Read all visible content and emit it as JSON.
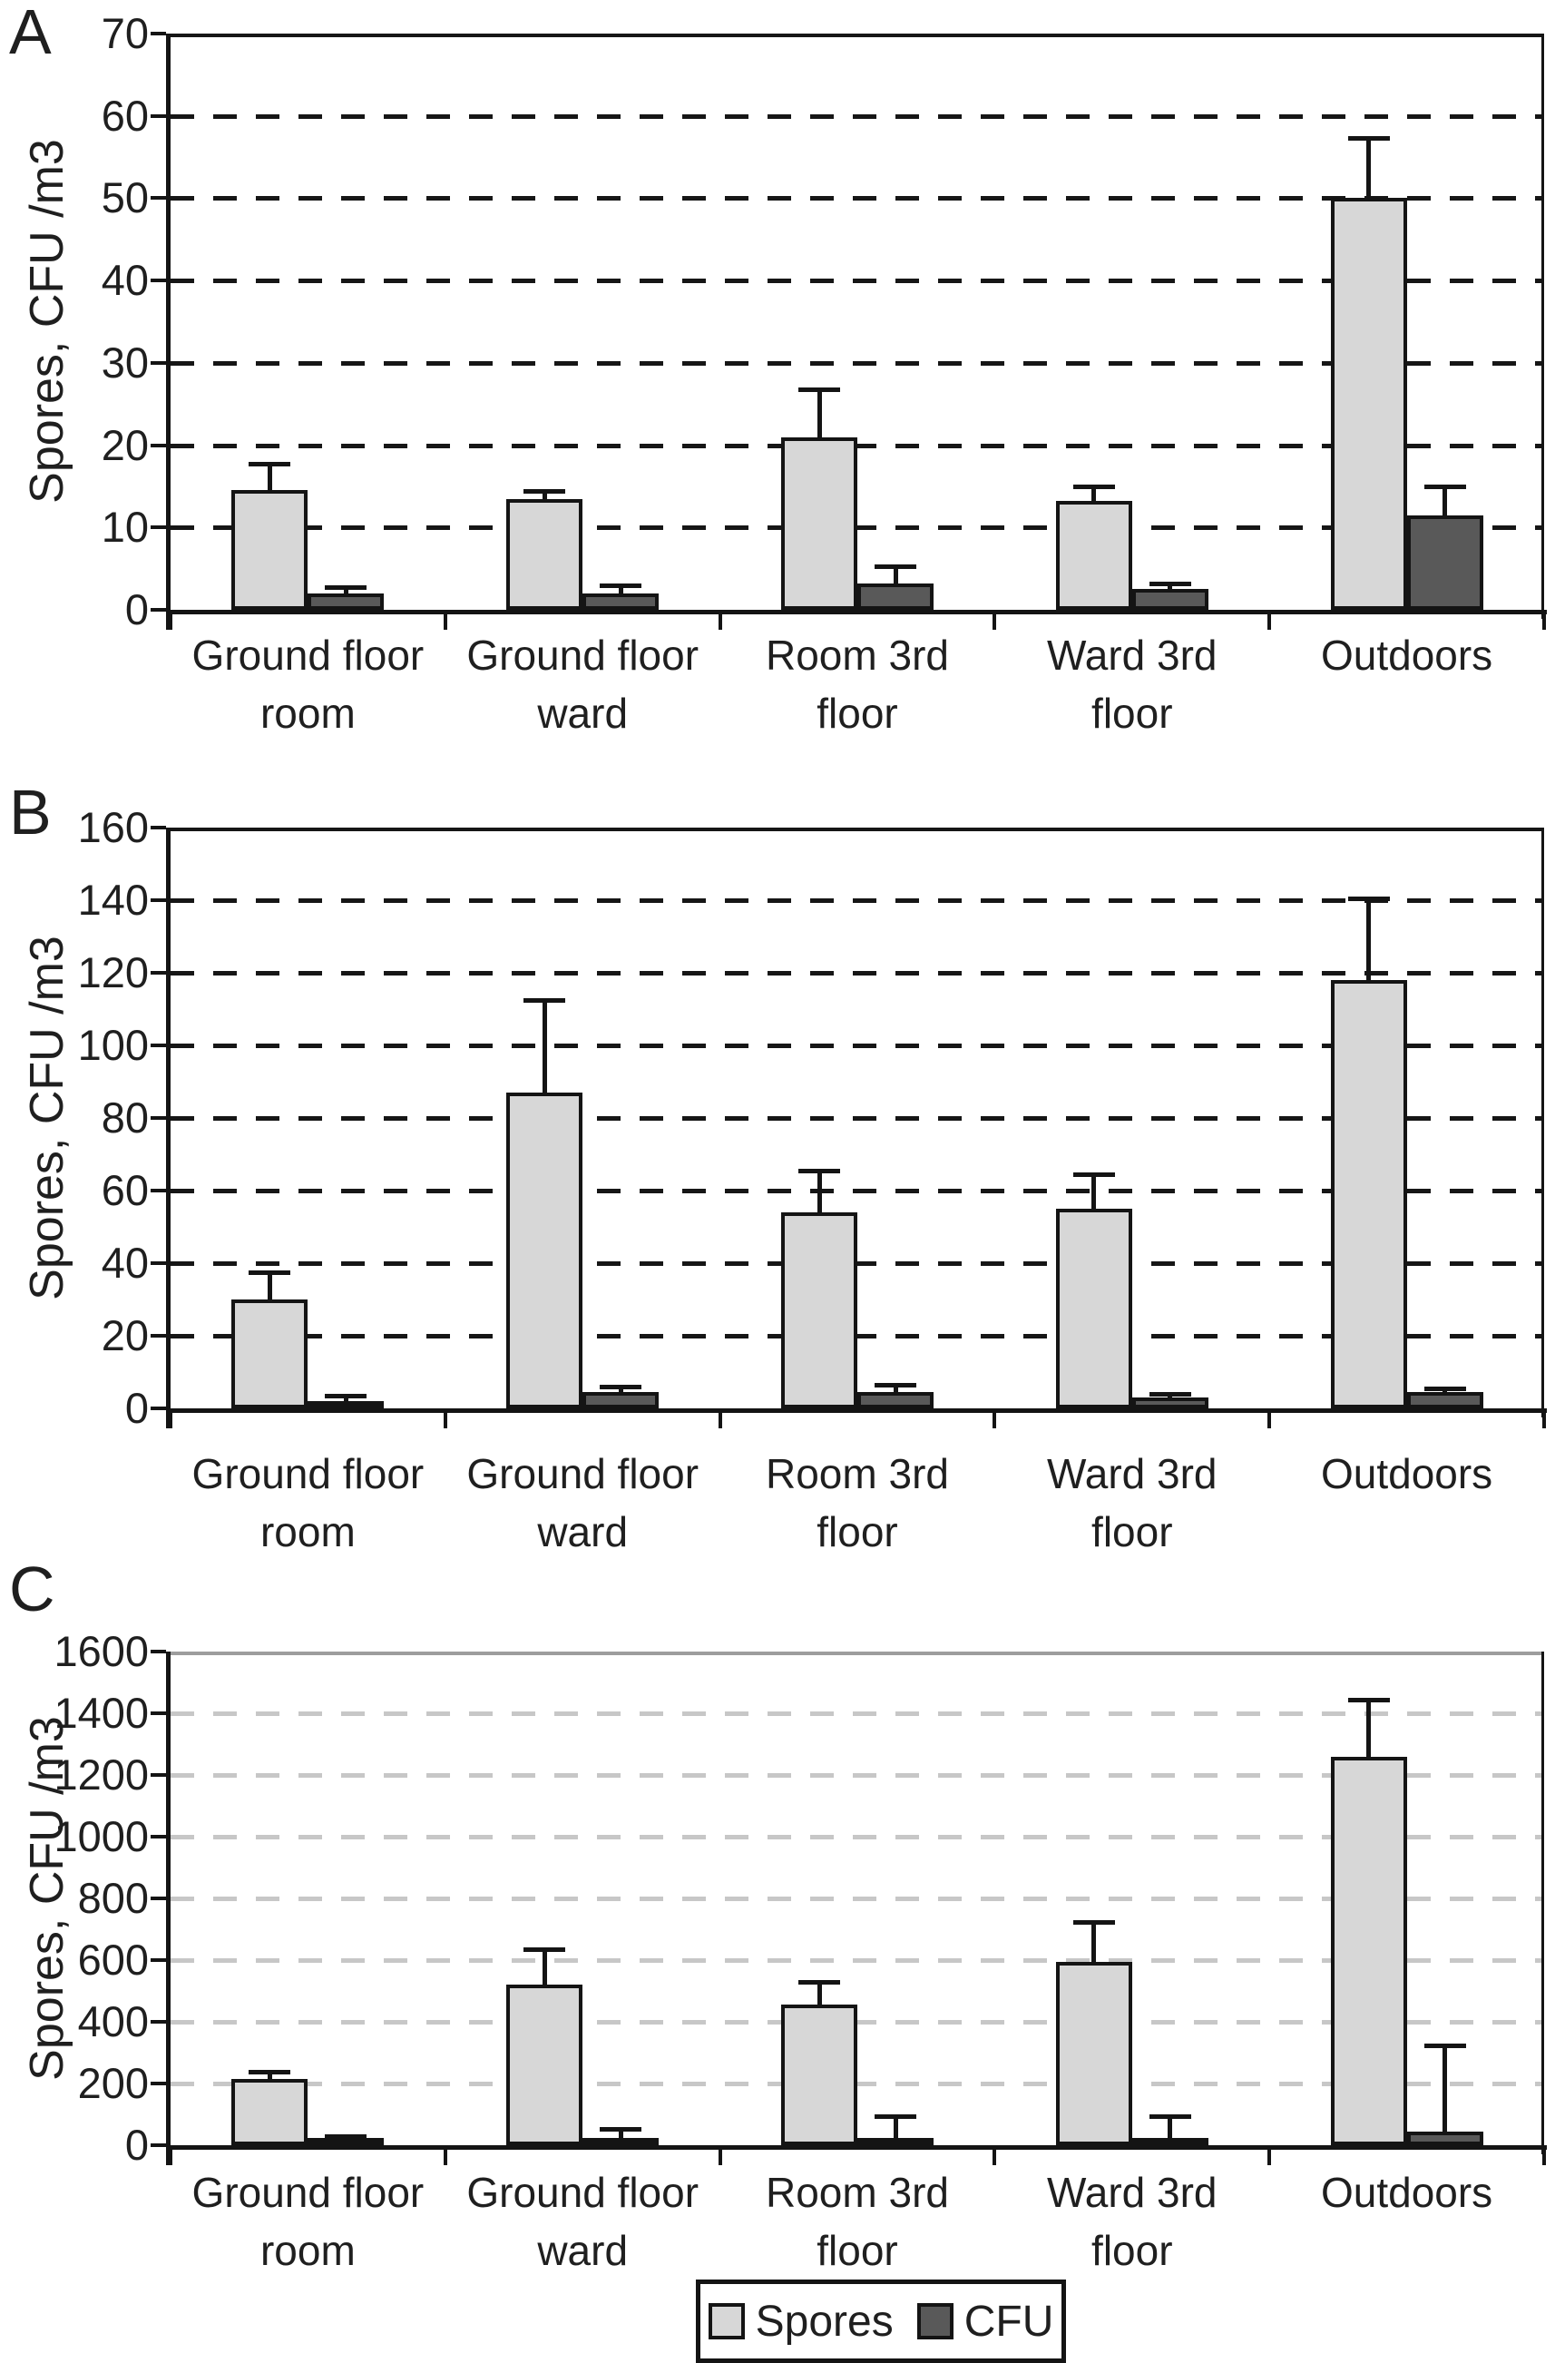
{
  "figure": {
    "y_axis_title": "Spores, CFU /m3",
    "legend": {
      "position": "bottom-center",
      "items": [
        {
          "label": "Spores",
          "color": "#d7d7d7"
        },
        {
          "label": "CFU",
          "color": "#595959"
        }
      ]
    }
  },
  "chart_data": [
    {
      "type": "bar",
      "panel_label": "A",
      "ylabel": "Spores, CFU /m3",
      "ylim": [
        0,
        70
      ],
      "ytick_step": 10,
      "yticks": [
        0,
        10,
        20,
        30,
        40,
        50,
        60,
        70
      ],
      "categories": [
        [
          "Ground floor",
          "room"
        ],
        [
          "Ground floor",
          "ward"
        ],
        [
          "Room 3rd",
          "floor"
        ],
        [
          "Ward 3rd",
          "floor"
        ],
        [
          "Outdoors"
        ]
      ],
      "grid": {
        "on": true,
        "style": "dashed",
        "color": "#161616"
      },
      "frame_top_color": "#161616",
      "series": [
        {
          "name": "Spores",
          "color": "#d7d7d7",
          "values": [
            14.5,
            13.4,
            21,
            13.2,
            50
          ],
          "errors_upper": [
            18,
            14.7,
            27,
            15.2,
            57.5
          ]
        },
        {
          "name": "CFU",
          "color": "#595959",
          "values": [
            2,
            2,
            3.2,
            2.5,
            11.5
          ],
          "errors_upper": [
            3,
            3.2,
            5.5,
            3.4,
            15.2
          ]
        }
      ]
    },
    {
      "type": "bar",
      "panel_label": "B",
      "ylabel": "Spores, CFU /m3",
      "ylim": [
        0,
        160
      ],
      "ytick_step": 20,
      "yticks": [
        0,
        20,
        40,
        60,
        80,
        100,
        120,
        140,
        160
      ],
      "categories": [
        [
          "Ground floor",
          "room"
        ],
        [
          "Ground floor",
          "ward"
        ],
        [
          "Room 3rd",
          "floor"
        ],
        [
          "Ward 3rd",
          "floor"
        ],
        [
          "Outdoors"
        ]
      ],
      "grid": {
        "on": true,
        "style": "dashed",
        "color": "#161616"
      },
      "frame_top_color": "#161616",
      "series": [
        {
          "name": "Spores",
          "color": "#d7d7d7",
          "values": [
            30,
            87,
            54,
            55,
            118
          ],
          "errors_upper": [
            38,
            113,
            66,
            65,
            141
          ]
        },
        {
          "name": "CFU",
          "color": "#595959",
          "values": [
            2,
            4.5,
            4.5,
            3,
            4.5
          ],
          "errors_upper": [
            4,
            6.5,
            7,
            4.5,
            6
          ]
        }
      ]
    },
    {
      "type": "bar",
      "panel_label": "C",
      "ylabel": "Spores, CFU /m3",
      "ylim": [
        0,
        1600
      ],
      "ytick_step": 200,
      "yticks": [
        0,
        200,
        400,
        600,
        800,
        1000,
        1200,
        1400,
        1600
      ],
      "categories": [
        [
          "Ground floor",
          "room"
        ],
        [
          "Ground floor",
          "ward"
        ],
        [
          "Room 3rd",
          "floor"
        ],
        [
          "Ward 3rd",
          "floor"
        ],
        [
          "Outdoors"
        ]
      ],
      "grid": {
        "on": true,
        "style": "dashed",
        "color": "#c7c7c7"
      },
      "frame_top_color": "#9d9d9d",
      "series": [
        {
          "name": "Spores",
          "color": "#d7d7d7",
          "values": [
            215,
            520,
            455,
            595,
            1260
          ],
          "errors_upper": [
            245,
            640,
            535,
            730,
            1450
          ]
        },
        {
          "name": "CFU",
          "color": "#595959",
          "values": [
            8,
            10,
            8,
            10,
            45
          ],
          "errors_upper": [
            35,
            60,
            100,
            100,
            330
          ]
        }
      ]
    }
  ]
}
